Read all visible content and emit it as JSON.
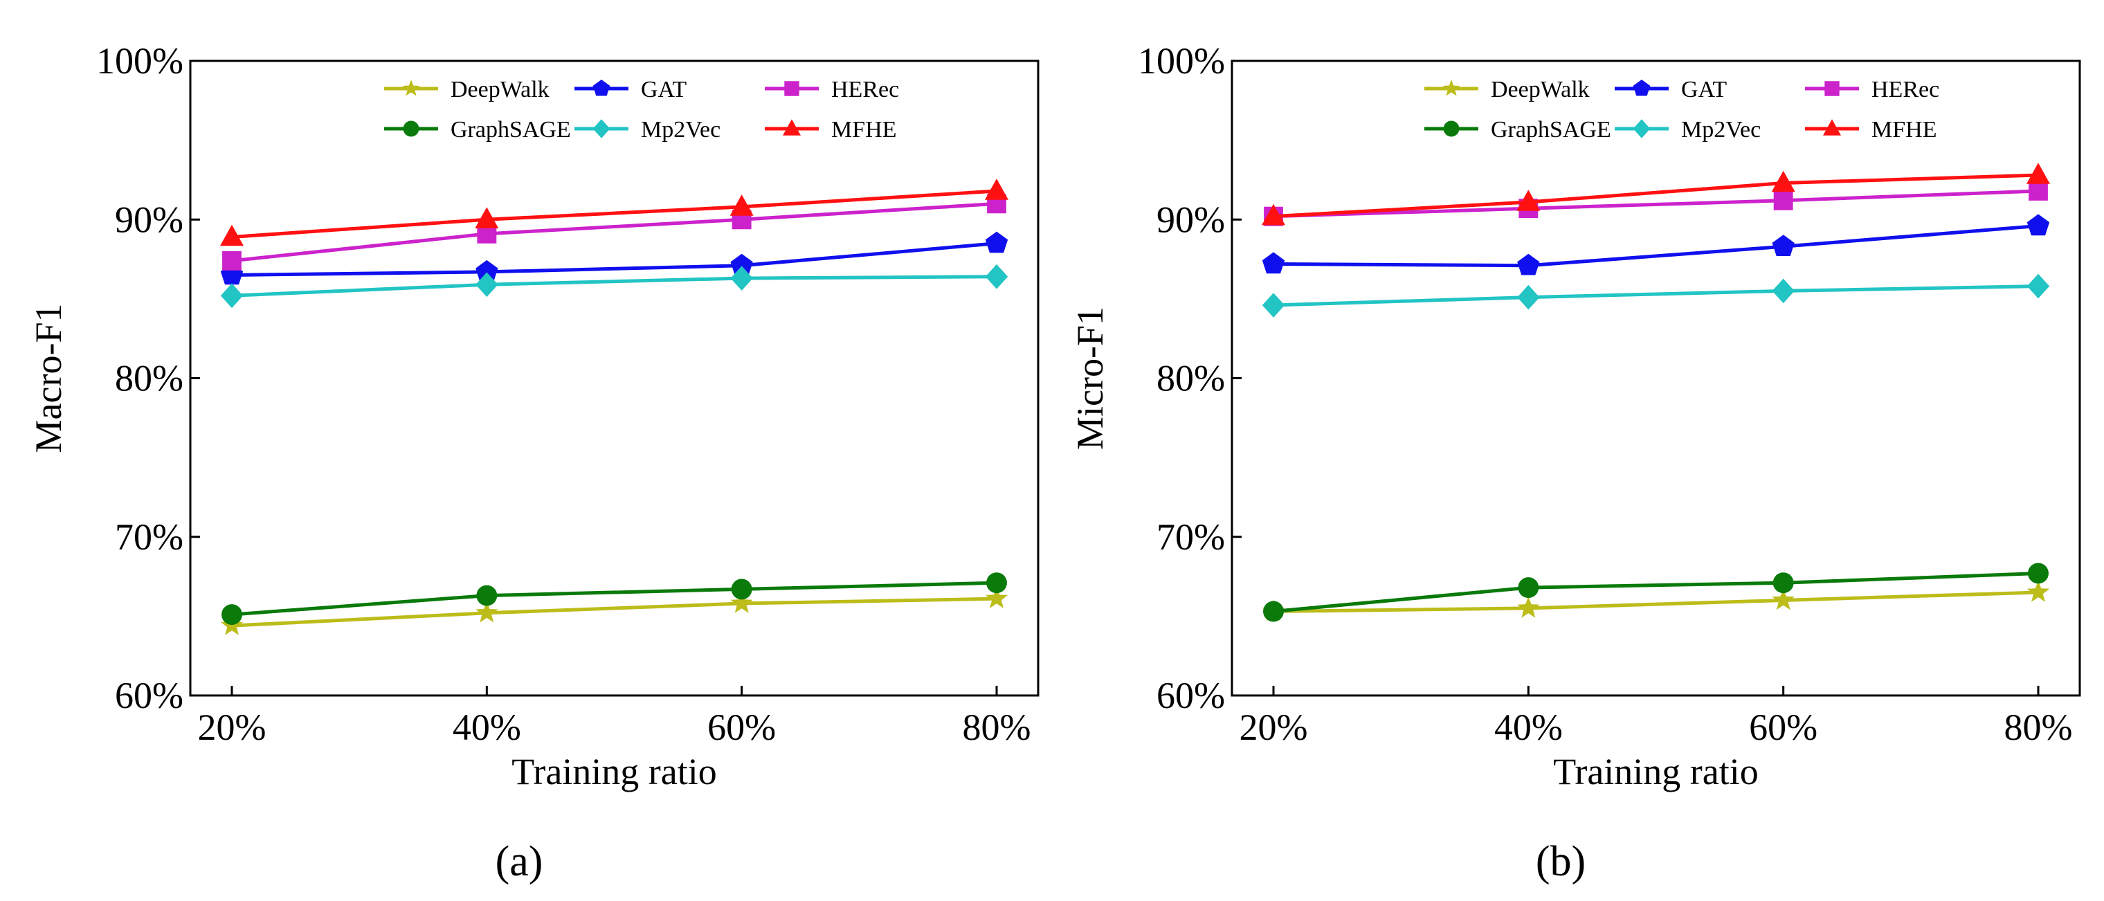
{
  "chart_data": [
    {
      "type": "line",
      "panel_label": "(a)",
      "xlabel": "Training ratio",
      "ylabel": "Macro-F1",
      "x": [
        "20%",
        "40%",
        "60%",
        "80%"
      ],
      "ylim": [
        60,
        100
      ],
      "yticks": [
        "60%",
        "70%",
        "80%",
        "90%",
        "100%"
      ],
      "legend": "top-right",
      "series": [
        {
          "name": "DeepWalk",
          "color": "#bcbc1a",
          "marker": "star",
          "values": [
            64.4,
            65.2,
            65.8,
            66.1
          ]
        },
        {
          "name": "GraphSAGE",
          "color": "#0a7a0a",
          "marker": "circle",
          "values": [
            65.1,
            66.3,
            66.7,
            67.1
          ]
        },
        {
          "name": "GAT",
          "color": "#1010ee",
          "marker": "pentagon",
          "values": [
            86.5,
            86.7,
            87.1,
            88.5
          ]
        },
        {
          "name": "Mp2Vec",
          "color": "#22c4c4",
          "marker": "diamond",
          "values": [
            85.2,
            85.9,
            86.3,
            86.4
          ]
        },
        {
          "name": "HERec",
          "color": "#cc22cc",
          "marker": "square",
          "values": [
            87.4,
            89.1,
            90.0,
            91.0
          ]
        },
        {
          "name": "MFHE",
          "color": "#ff1111",
          "marker": "triangle",
          "values": [
            88.9,
            90.0,
            90.8,
            91.8
          ]
        }
      ]
    },
    {
      "type": "line",
      "panel_label": "(b)",
      "xlabel": "Training ratio",
      "ylabel": "Micro-F1",
      "x": [
        "20%",
        "40%",
        "60%",
        "80%"
      ],
      "ylim": [
        60,
        100
      ],
      "yticks": [
        "60%",
        "70%",
        "80%",
        "90%",
        "100%"
      ],
      "legend": "top-right",
      "series": [
        {
          "name": "DeepWalk",
          "color": "#bcbc1a",
          "marker": "star",
          "values": [
            65.3,
            65.5,
            66.0,
            66.5
          ]
        },
        {
          "name": "GraphSAGE",
          "color": "#0a7a0a",
          "marker": "circle",
          "values": [
            65.3,
            66.8,
            67.1,
            67.7
          ]
        },
        {
          "name": "GAT",
          "color": "#1010ee",
          "marker": "pentagon",
          "values": [
            87.2,
            87.1,
            88.3,
            89.6
          ]
        },
        {
          "name": "Mp2Vec",
          "color": "#22c4c4",
          "marker": "diamond",
          "values": [
            84.6,
            85.1,
            85.5,
            85.8
          ]
        },
        {
          "name": "HERec",
          "color": "#cc22cc",
          "marker": "square",
          "values": [
            90.2,
            90.7,
            91.2,
            91.8
          ]
        },
        {
          "name": "MFHE",
          "color": "#ff1111",
          "marker": "triangle",
          "values": [
            90.2,
            91.1,
            92.3,
            92.8
          ]
        }
      ]
    }
  ]
}
